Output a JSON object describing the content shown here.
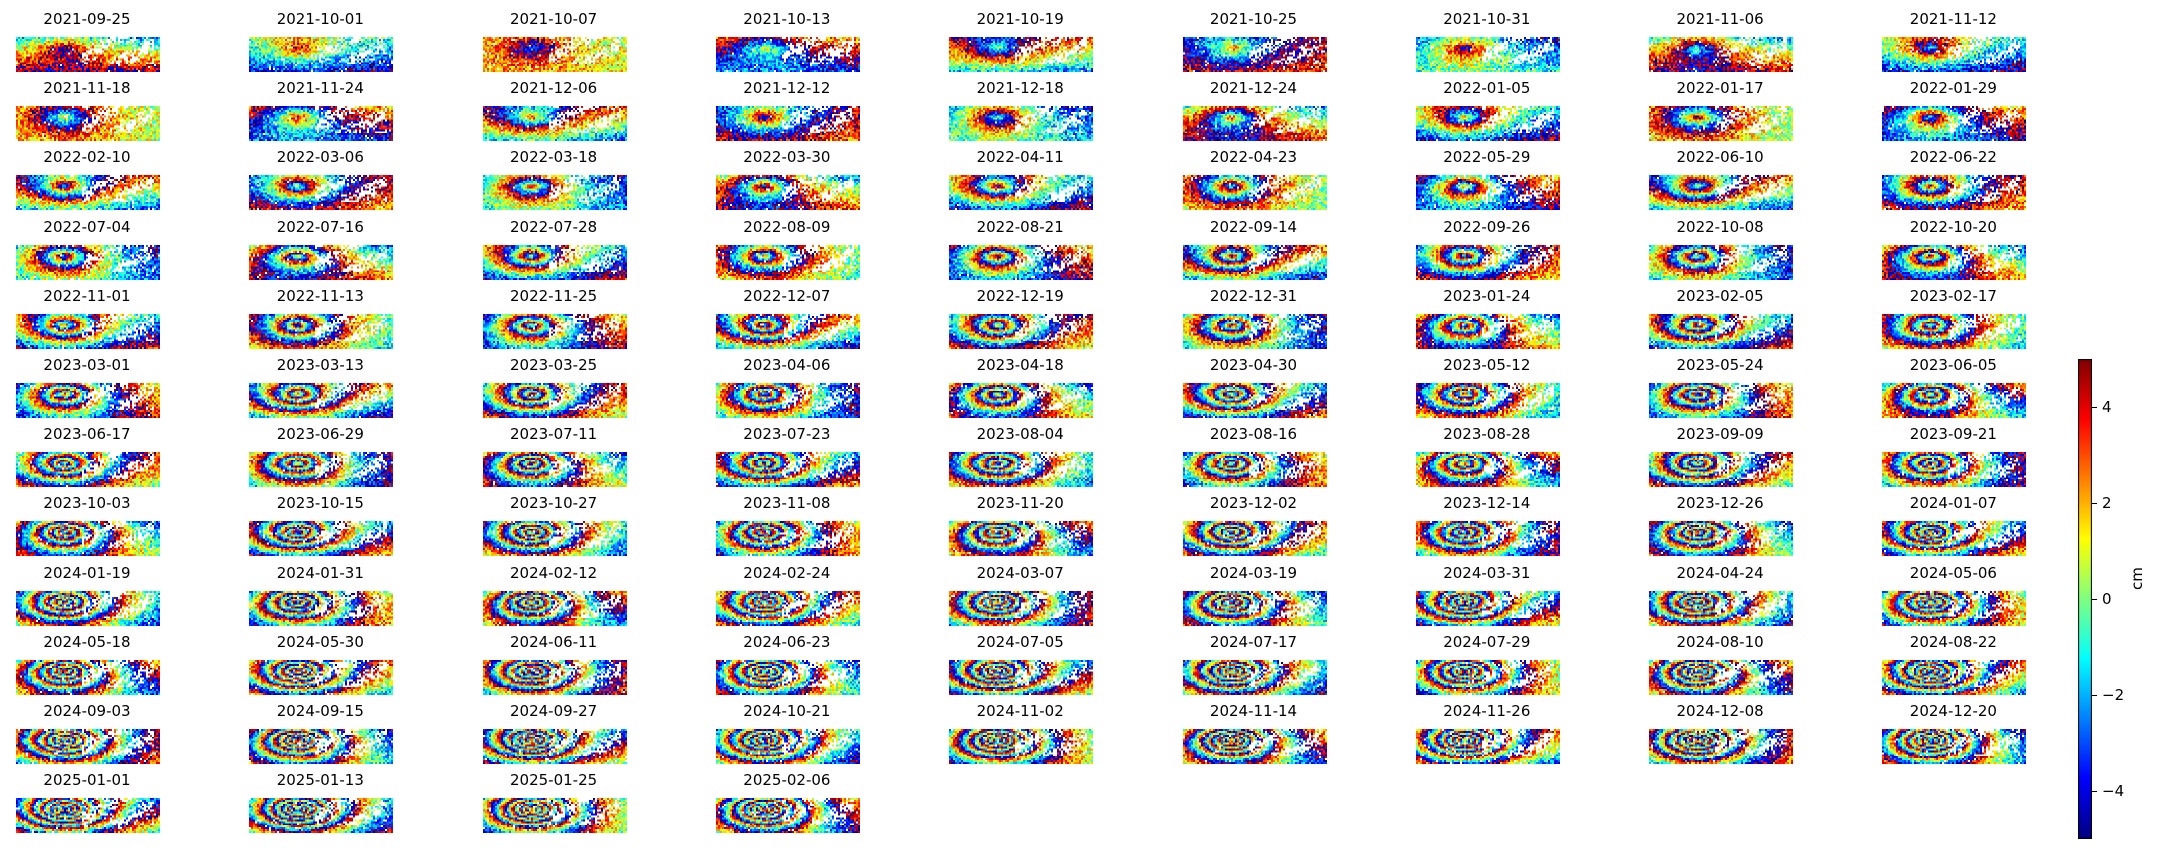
{
  "chart_data": {
    "type": "heatmap",
    "description_of_panels": "",
    "panel_dates": [
      "2021-09-25",
      "2021-10-01",
      "2021-10-07",
      "2021-10-13",
      "2021-10-19",
      "2021-10-25",
      "2021-10-31",
      "2021-11-06",
      "2021-11-12",
      "2021-11-18",
      "2021-11-24",
      "2021-12-06",
      "2021-12-12",
      "2021-12-18",
      "2021-12-24",
      "2022-01-05",
      "2022-01-17",
      "2022-01-29",
      "2022-02-10",
      "2022-03-06",
      "2022-03-18",
      "2022-03-30",
      "2022-04-11",
      "2022-04-23",
      "2022-05-29",
      "2022-06-10",
      "2022-06-22",
      "2022-07-04",
      "2022-07-16",
      "2022-07-28",
      "2022-08-09",
      "2022-08-21",
      "2022-09-14",
      "2022-09-26",
      "2022-10-08",
      "2022-10-20",
      "2022-11-01",
      "2022-11-13",
      "2022-11-25",
      "2022-12-07",
      "2022-12-19",
      "2022-12-31",
      "2023-01-24",
      "2023-02-05",
      "2023-02-17",
      "2023-03-01",
      "2023-03-13",
      "2023-03-25",
      "2023-04-06",
      "2023-04-18",
      "2023-04-30",
      "2023-05-12",
      "2023-05-24",
      "2023-06-05",
      "2023-06-17",
      "2023-06-29",
      "2023-07-11",
      "2023-07-23",
      "2023-08-04",
      "2023-08-16",
      "2023-08-28",
      "2023-09-09",
      "2023-09-21",
      "2023-10-03",
      "2023-10-15",
      "2023-10-27",
      "2023-11-08",
      "2023-11-20",
      "2023-12-02",
      "2023-12-14",
      "2023-12-26",
      "2024-01-07",
      "2024-01-19",
      "2024-01-31",
      "2024-02-12",
      "2024-02-24",
      "2024-03-07",
      "2024-03-19",
      "2024-03-31",
      "2024-04-24",
      "2024-05-06",
      "2024-05-18",
      "2024-05-30",
      "2024-06-11",
      "2024-06-23",
      "2024-07-05",
      "2024-07-17",
      "2024-07-29",
      "2024-08-10",
      "2024-08-22",
      "2024-09-03",
      "2024-09-15",
      "2024-09-27",
      "2024-10-21",
      "2024-11-02",
      "2024-11-14",
      "2024-11-26",
      "2024-12-08",
      "2024-12-20",
      "2025-01-01",
      "2025-01-13",
      "2025-01-25",
      "2025-02-06"
    ],
    "colormap": "jet",
    "colorbar": {
      "label": "cm",
      "range": [
        -5,
        5
      ],
      "ticks": [
        4,
        2,
        0,
        -2,
        -4
      ],
      "tick_labels": [
        "4",
        "2",
        "0",
        "−2",
        "−4"
      ]
    },
    "layout": {
      "columns": 9
    },
    "colors": [
      "#00007f",
      "#0000ff",
      "#007fff",
      "#00ffff",
      "#7fff7f",
      "#ffff00",
      "#ff7f00",
      "#ff0000",
      "#7f0000"
    ]
  }
}
